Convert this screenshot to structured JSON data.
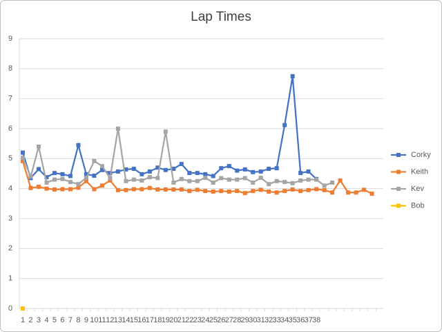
{
  "chart_data": {
    "type": "line",
    "title": "Lap Times",
    "categories": [
      "1",
      "2",
      "3",
      "4",
      "5",
      "6",
      "7",
      "8",
      "9",
      "10",
      "11",
      "12",
      "13",
      "14",
      "15",
      "16",
      "17",
      "18",
      "19",
      "20",
      "21",
      "22",
      "23",
      "24",
      "25",
      "26",
      "27",
      "28",
      "29",
      "30",
      "31",
      "32",
      "33",
      "34",
      "35",
      "36",
      "37",
      "38",
      null,
      null,
      null,
      null,
      null,
      null,
      null
    ],
    "series": [
      {
        "name": "Corky",
        "color": "#4472c4",
        "values": [
          5.2,
          4.35,
          4.65,
          4.38,
          4.52,
          4.48,
          4.42,
          5.45,
          4.48,
          4.43,
          4.62,
          4.52,
          4.57,
          4.64,
          4.66,
          4.48,
          4.57,
          4.7,
          4.62,
          4.66,
          4.82,
          4.52,
          4.52,
          4.48,
          4.42,
          4.68,
          4.75,
          4.6,
          4.64,
          4.55,
          4.57,
          4.66,
          4.68,
          6.12,
          7.75,
          4.52,
          4.57,
          4.32,
          null,
          null,
          null,
          null,
          null,
          null,
          null
        ]
      },
      {
        "name": "Keith",
        "color": "#ed7d31",
        "values": [
          4.92,
          4.02,
          4.06,
          4.0,
          3.97,
          3.98,
          3.98,
          4.03,
          4.25,
          3.98,
          4.1,
          4.27,
          3.95,
          3.95,
          3.98,
          3.98,
          4.02,
          3.97,
          3.97,
          3.97,
          3.97,
          3.92,
          3.96,
          3.92,
          3.9,
          3.92,
          3.9,
          3.92,
          3.85,
          3.92,
          3.96,
          3.9,
          3.87,
          3.92,
          3.97,
          3.92,
          3.95,
          3.98,
          3.95,
          3.87,
          4.27,
          3.87,
          3.87,
          3.96,
          3.83
        ]
      },
      {
        "name": "Kev",
        "color": "#a5a5a5",
        "values": [
          5.03,
          4.4,
          5.4,
          4.2,
          4.3,
          4.32,
          4.22,
          4.15,
          4.36,
          4.92,
          4.75,
          4.35,
          6.0,
          4.25,
          4.3,
          4.27,
          4.38,
          4.35,
          5.9,
          4.2,
          4.32,
          4.25,
          4.25,
          4.36,
          4.2,
          4.35,
          4.3,
          4.3,
          4.35,
          4.2,
          4.36,
          4.15,
          4.25,
          4.22,
          4.18,
          4.27,
          4.3,
          4.3,
          4.1,
          4.2,
          null,
          null,
          null,
          null,
          null
        ]
      },
      {
        "name": "Bob",
        "color": "#ffc000",
        "values": [
          0,
          null,
          null,
          null,
          null,
          null,
          null,
          null,
          null,
          null,
          null,
          null,
          null,
          null,
          null,
          null,
          null,
          null,
          null,
          null,
          null,
          null,
          null,
          null,
          null,
          null,
          null,
          null,
          null,
          null,
          null,
          null,
          null,
          null,
          null,
          null,
          null,
          null,
          null,
          null,
          null,
          null,
          null,
          null,
          null
        ]
      }
    ],
    "ylim": [
      0,
      9
    ],
    "yticks": [
      0,
      1,
      2,
      3,
      4,
      5,
      6,
      7,
      8,
      9
    ],
    "grid": true,
    "legend": "right"
  }
}
